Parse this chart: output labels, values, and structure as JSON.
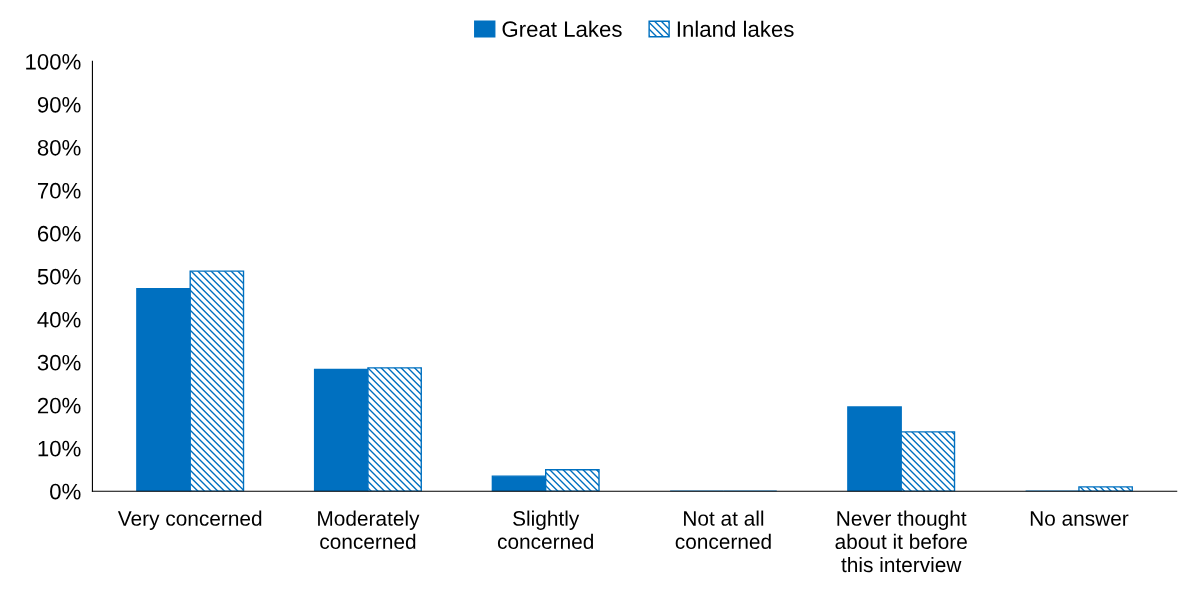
{
  "chart_data": {
    "type": "bar",
    "categories": [
      "Very concerned",
      "Moderately concerned",
      "Slightly concerned",
      "Not at all concerned",
      "Never thought about it before this interview",
      "No answer"
    ],
    "series": [
      {
        "name": "Great Lakes",
        "color": "#0070c0",
        "values": [
          47.1,
          28.3,
          3.5,
          0,
          19.6,
          0
        ]
      },
      {
        "name": "Inland lakes",
        "color": "#0070c0",
        "values": [
          51.2,
          28.7,
          5.0,
          0,
          13.8,
          1.0
        ]
      }
    ],
    "ylim": [
      0,
      100
    ],
    "yticks": [
      {
        "value": 0,
        "label": "0%"
      },
      {
        "value": 10,
        "label": "10%"
      },
      {
        "value": 20,
        "label": "20%"
      },
      {
        "value": 30,
        "label": "30%"
      },
      {
        "value": 40,
        "label": "40%"
      },
      {
        "value": 50,
        "label": "50%"
      },
      {
        "value": 60,
        "label": "60%"
      },
      {
        "value": 70,
        "label": "70%"
      },
      {
        "value": 80,
        "label": "80%"
      },
      {
        "value": 90,
        "label": "90%"
      },
      {
        "value": 100,
        "label": "100%"
      }
    ],
    "legend": "top",
    "grid": false
  }
}
